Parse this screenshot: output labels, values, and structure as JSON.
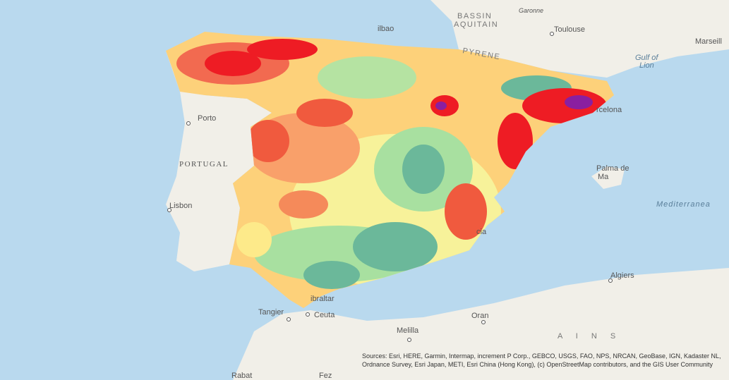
{
  "map": {
    "labels": {
      "bassin": "BASSIN",
      "aquitain": "AQUITAIN",
      "garonne": "Garonne",
      "toulouse": "Toulouse",
      "marseille": "Marseill",
      "gulf_of": "Gulf of",
      "lion": "Lion",
      "pyrenees": "PYRENE",
      "bilbao": "ilbao",
      "porto": "Porto",
      "portugal": "PORTUGAL",
      "lisbon": "Lisbon",
      "barcelona": "rcelona",
      "palma": "Palma de",
      "mallorca": "Ma",
      "mediterranean": "Mediterranea",
      "valencia": "cia",
      "algiers": "Algiers",
      "tangier": "Tangier",
      "ceuta": "Ceuta",
      "gibraltar": "ibraltar",
      "oran": "Oran",
      "melilla": "Melilla",
      "rabat": "Rabat",
      "fez": "Fez",
      "atlas": "A I N S"
    },
    "attribution": "Sources: Esri, HERE, Garmin, Intermap, increment P Corp., GEBCO, USGS, FAO, NPS, NRCAN, GeoBase, IGN, Kadaster NL, Ordnance Survey, Esri Japan, METI, Esri China (Hong Kong), (c) OpenStreetMap contributors, and the GIS User Community"
  }
}
